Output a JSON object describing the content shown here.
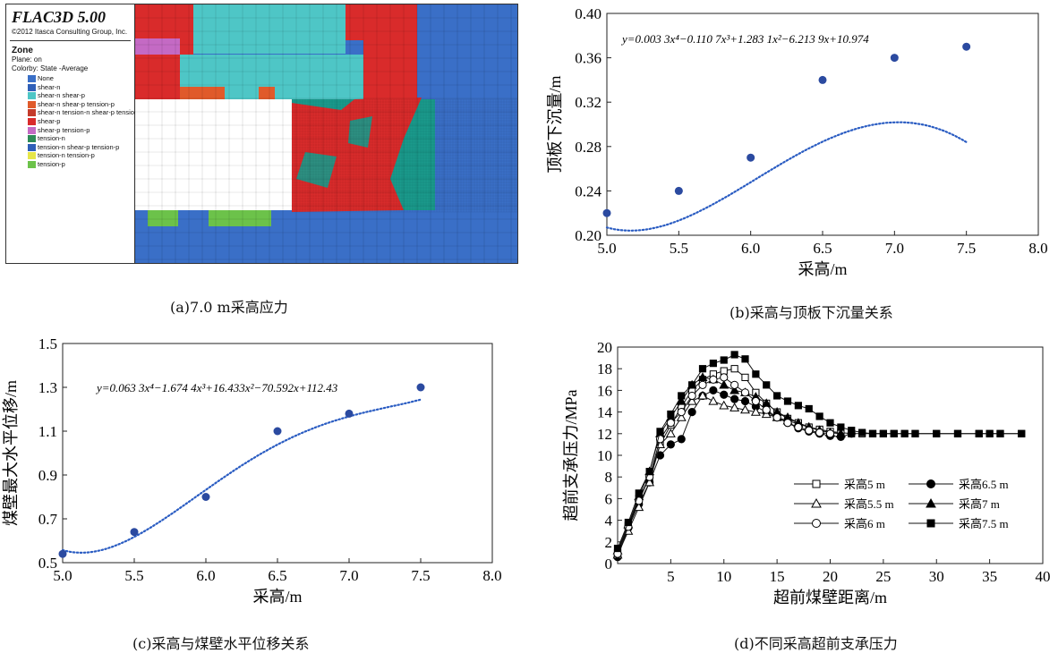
{
  "flac": {
    "title": "FLAC3D 5.00",
    "copyright": "©2012 Itasca Consulting Group, Inc.",
    "zone_label": "Zone",
    "plane_label": "Plane: on",
    "colorby_label": "Colorby: State  -Average",
    "legend": [
      {
        "label": "None",
        "color": "#3a6fc7"
      },
      {
        "label": "shear-n",
        "color": "#2f5fb8"
      },
      {
        "label": "shear-n shear-p",
        "color": "#4ec6c6"
      },
      {
        "label": "shear-n shear-p tension-p",
        "color": "#e05a2a"
      },
      {
        "label": "shear-n tension-n shear-p tension-p",
        "color": "#c43a2a"
      },
      {
        "label": "shear-p",
        "color": "#d92b2b"
      },
      {
        "label": "shear-p tension-p",
        "color": "#c46ac4"
      },
      {
        "label": "tension-n",
        "color": "#2e8b57"
      },
      {
        "label": "tension-n shear-p tension-p",
        "color": "#2f5fb8"
      },
      {
        "label": "tension-n tension-p",
        "color": "#e6e64a"
      },
      {
        "label": "tension-p",
        "color": "#6cc24a"
      }
    ]
  },
  "captions": {
    "a": "(a)7.0 m采高应力",
    "b": "(b)采高与顶板下沉量关系",
    "c": "(c)采高与煤壁水平位移关系",
    "d": "(d)不同采高超前支承压力"
  },
  "chart_data": [
    {
      "id": "b",
      "type": "scatter",
      "title": "",
      "xlabel": "采高/m",
      "ylabel": "顶板下沉量/m",
      "xlim": [
        5.0,
        8.0
      ],
      "ylim": [
        0.2,
        0.4
      ],
      "xticks": [
        "5.0",
        "5.5",
        "6.0",
        "6.5",
        "7.0",
        "7.5",
        "8.0"
      ],
      "yticks": [
        "0.20",
        "0.24",
        "0.28",
        "0.32",
        "0.36",
        "0.40"
      ],
      "equation": "y=0.003 3x⁴−0.110 7x³+1.283 1x²−6.213 9x+10.974",
      "x": [
        5.0,
        5.5,
        6.0,
        6.5,
        7.0,
        7.5
      ],
      "y": [
        0.22,
        0.24,
        0.27,
        0.34,
        0.36,
        0.37
      ],
      "fit_coeffs": [
        0.0033,
        -0.1107,
        1.2831,
        -6.2139,
        10.974
      ],
      "grid": false
    },
    {
      "id": "c",
      "type": "scatter",
      "title": "",
      "xlabel": "采高/m",
      "ylabel": "煤壁最大水平位移/m",
      "xlim": [
        5.0,
        8.0
      ],
      "ylim": [
        0.5,
        1.5
      ],
      "xticks": [
        "5.0",
        "5.5",
        "6.0",
        "6.5",
        "7.0",
        "7.5",
        "8.0"
      ],
      "yticks": [
        "0.5",
        "0.7",
        "0.9",
        "1.1",
        "1.3",
        "1.5"
      ],
      "equation": "y=0.063 3x⁴−1.674 4x³+16.433x²−70.592x+112.43",
      "x": [
        5.0,
        5.5,
        6.0,
        6.5,
        7.0,
        7.5
      ],
      "y": [
        0.54,
        0.64,
        0.8,
        1.1,
        1.18,
        1.3
      ],
      "fit_coeffs": [
        0.0633,
        -1.6744,
        16.433,
        -70.592,
        112.43
      ],
      "grid": false
    },
    {
      "id": "d",
      "type": "line",
      "title": "",
      "xlabel": "超前煤壁距离/m",
      "ylabel": "超前支承压力/MPa",
      "xlim": [
        0,
        40
      ],
      "ylim": [
        0,
        20
      ],
      "xticks": [
        "5",
        "10",
        "15",
        "20",
        "25",
        "30",
        "35",
        "40"
      ],
      "yticks": [
        "0",
        "2",
        "4",
        "6",
        "8",
        "10",
        "12",
        "14",
        "16",
        "18",
        "20"
      ],
      "legend_position": "center-right",
      "series": [
        {
          "name": "采高5 m",
          "marker": "square-open",
          "x": [
            0,
            1,
            2,
            3,
            4,
            5,
            6,
            7,
            8,
            9,
            10,
            11,
            12,
            13,
            14,
            15,
            16,
            17,
            18,
            19,
            20,
            21,
            22,
            23,
            24,
            25,
            26,
            27,
            28,
            30,
            32,
            34,
            35,
            36,
            38
          ],
          "y": [
            1.0,
            3.5,
            6.0,
            8.0,
            11.0,
            12.8,
            14.5,
            16.0,
            17.0,
            17.5,
            17.8,
            18.0,
            17.2,
            15.8,
            14.8,
            14.0,
            13.4,
            13.0,
            12.6,
            12.4,
            12.2,
            12.1,
            12.0,
            12.0,
            12.0,
            12.0,
            12.0,
            12.0,
            12.0,
            12.0,
            12.0,
            12.0,
            12.0,
            12.0,
            12.0
          ]
        },
        {
          "name": "采高6.5 m",
          "marker": "circle-filled",
          "x": [
            0,
            1,
            2,
            3,
            4,
            5,
            6,
            7,
            8,
            9,
            10,
            11,
            12,
            13,
            14,
            15,
            16,
            17,
            18,
            19,
            20,
            21,
            22
          ],
          "y": [
            0.6,
            3.3,
            5.5,
            7.5,
            10.0,
            11.0,
            11.5,
            14.0,
            15.5,
            16.0,
            15.6,
            15.2,
            15.0,
            14.5,
            14.0,
            13.5,
            13.0,
            12.5,
            12.2,
            12.0,
            11.8,
            11.7,
            12.0
          ]
        },
        {
          "name": "采高5.5 m",
          "marker": "triangle-open",
          "x": [
            0,
            1,
            2,
            3,
            4,
            5,
            6,
            7,
            8,
            9,
            10,
            11,
            12,
            13,
            14,
            15,
            16,
            17,
            18,
            19,
            20,
            21
          ],
          "y": [
            0.8,
            3.0,
            5.2,
            7.5,
            11.0,
            12.0,
            13.5,
            15.0,
            15.5,
            15.0,
            14.6,
            14.4,
            14.2,
            14.0,
            13.8,
            13.5,
            13.2,
            12.9,
            12.6,
            12.3,
            12.1,
            12.0
          ]
        },
        {
          "name": "采高7 m",
          "marker": "triangle-filled",
          "x": [
            0,
            1,
            2,
            3,
            4,
            5,
            6,
            7,
            8,
            9,
            10,
            11,
            12,
            13,
            14,
            15,
            16,
            17,
            18,
            19,
            20,
            21
          ],
          "y": [
            1.2,
            3.6,
            6.2,
            8.5,
            12.0,
            13.5,
            15.0,
            16.5,
            17.2,
            17.0,
            16.5,
            16.0,
            15.8,
            15.4,
            14.8,
            14.0,
            13.5,
            13.0,
            12.6,
            12.3,
            12.1,
            12.0
          ]
        },
        {
          "name": "采高6 m",
          "marker": "circle-open",
          "x": [
            0,
            1,
            2,
            3,
            4,
            5,
            6,
            7,
            8,
            9,
            10,
            11,
            12,
            13,
            14,
            15,
            16,
            17,
            18,
            19,
            20
          ],
          "y": [
            0.9,
            3.4,
            5.8,
            8.0,
            11.5,
            13.0,
            14.0,
            15.5,
            16.5,
            17.0,
            17.2,
            16.5,
            15.8,
            15.0,
            14.2,
            13.5,
            13.0,
            12.6,
            12.3,
            12.1,
            12.0
          ]
        },
        {
          "name": "采高7.5 m",
          "marker": "square-filled",
          "x": [
            0,
            1,
            2,
            3,
            4,
            5,
            6,
            7,
            8,
            9,
            10,
            11,
            12,
            13,
            14,
            15,
            16,
            17,
            18,
            19,
            20,
            21,
            22,
            23,
            24,
            25,
            26,
            27,
            28,
            30,
            32,
            34,
            35,
            36,
            38
          ],
          "y": [
            1.4,
            3.8,
            6.5,
            8.5,
            12.2,
            13.8,
            15.5,
            16.5,
            18.0,
            18.5,
            18.8,
            19.3,
            18.9,
            17.5,
            16.5,
            15.5,
            15.0,
            14.6,
            14.3,
            13.6,
            13.0,
            12.6,
            12.3,
            12.1,
            12.0,
            12.0,
            12.0,
            12.0,
            12.0,
            12.0,
            12.0,
            12.0,
            12.0,
            12.0,
            12.0
          ]
        }
      ]
    }
  ]
}
